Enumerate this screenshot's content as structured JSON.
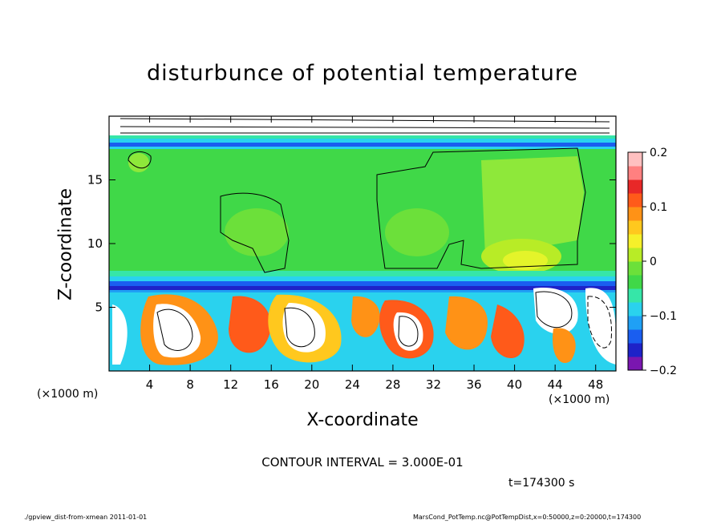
{
  "chart_data": {
    "type": "heatmap",
    "title": "disturbunce of potential temperature",
    "xlabel": "X-coordinate",
    "ylabel": "Z-coordinate",
    "x_unit": "(×1000 m)",
    "xlim": [
      0,
      50
    ],
    "ylim": [
      0,
      20
    ],
    "x_ticks": [
      4,
      8,
      12,
      16,
      20,
      24,
      28,
      32,
      36,
      40,
      44,
      48
    ],
    "y_ticks": [
      5,
      10,
      15
    ],
    "colorbar": {
      "range": [
        -0.2,
        0.2
      ],
      "tick_values": [
        0.2,
        0.1,
        0,
        -0.1,
        -0.2
      ],
      "tick_labels": [
        "0.2",
        "0.1",
        "0",
        "−0.1",
        "−0.2"
      ],
      "colors": [
        "#7a16b0",
        "#1e22c8",
        "#1a5ef0",
        "#1fa0f5",
        "#2ad2ee",
        "#36e6a8",
        "#40d848",
        "#6ce03a",
        "#b8ec26",
        "#f6f02a",
        "#ffc81e",
        "#ff9216",
        "#ff5a1a",
        "#e82828",
        "#ff8080",
        "#ffc0c0"
      ]
    },
    "annotation": "CONTOUR INTERVAL = 3.000E-01",
    "time_label": "t=174300 s"
  },
  "footer": {
    "left": "./gpview_dist-from-xmean  2011-01-01",
    "right": "MarsCond_PotTemp.nc@PotTempDist,x=0:50000,z=0:20000,t=174300"
  }
}
